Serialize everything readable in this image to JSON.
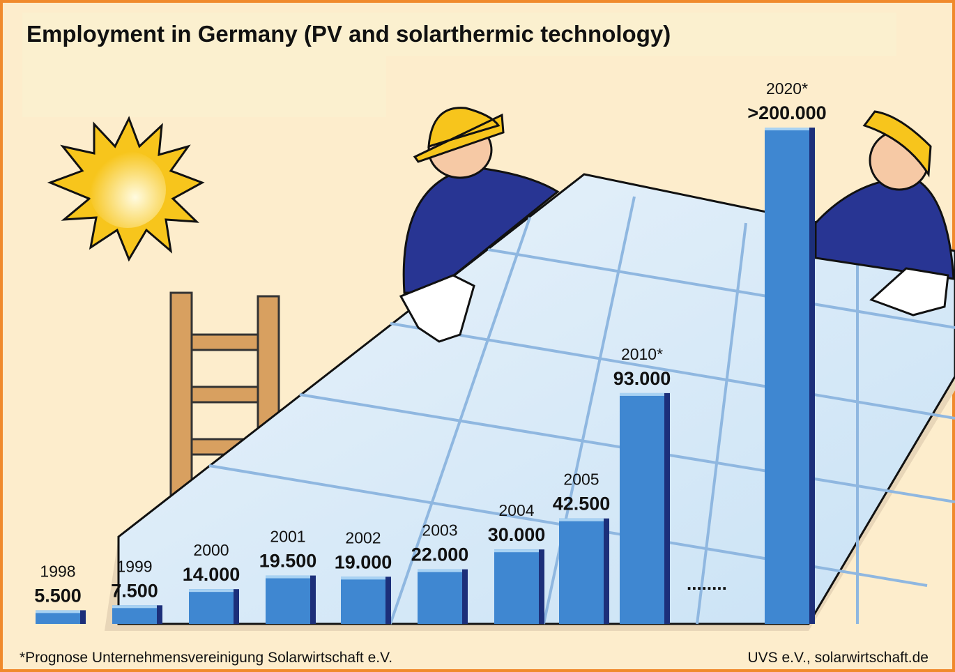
{
  "chart_data": {
    "type": "bar",
    "title": "Employment in Germany (PV and solarthermic technology)",
    "categories": [
      "1998",
      "1999",
      "2000",
      "2001",
      "2002",
      "2003",
      "2004",
      "2005",
      "2010*",
      "2020*"
    ],
    "values": [
      5500,
      7500,
      14000,
      19500,
      19000,
      22000,
      30000,
      42500,
      93000,
      200000
    ],
    "value_labels": [
      "5.500",
      "7.500",
      "14.000",
      "19.500",
      "19.000",
      "22.000",
      "30.000",
      "42.500",
      "93.000",
      ">200.000"
    ],
    "color": "#3f87d1",
    "footnote": "*Prognose Unternehmensvereinigung Solarwirtschaft e.V.",
    "source": "UVS e.V., solarwirtschaft.de"
  }
}
